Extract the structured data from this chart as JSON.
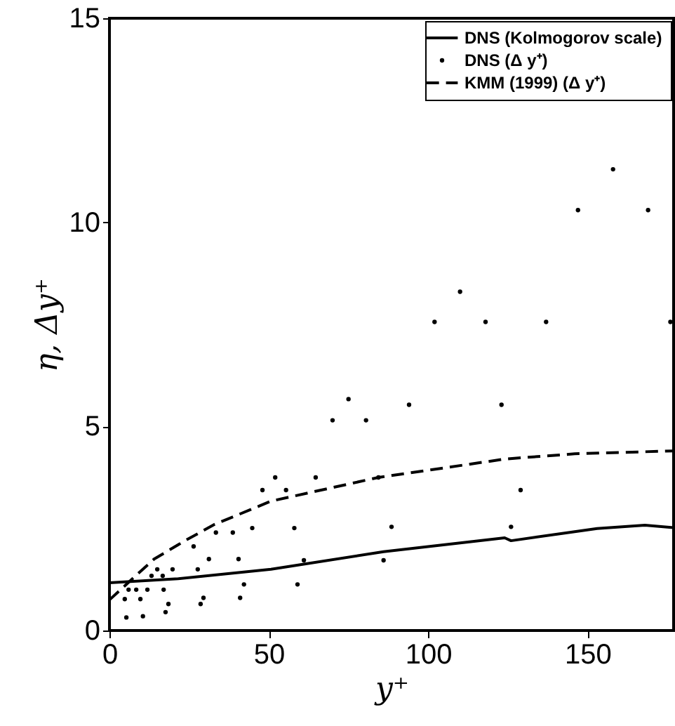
{
  "chart_data": {
    "type": "line",
    "xlabel": "y⁺",
    "ylabel": "η, Δy⁺",
    "xlim": [
      0,
      177
    ],
    "ylim": [
      0,
      15
    ],
    "xticks": [
      0,
      50,
      100,
      150
    ],
    "yticks": [
      0,
      5,
      10,
      15
    ],
    "grid": false,
    "legend": "top right",
    "series": [
      {
        "name": "DNS (Kolmogorov scale)",
        "line_style": "solid",
        "color": "#000000",
        "x": [
          0,
          21.5,
          50.7,
          86,
          124,
          126,
          153,
          168,
          177
        ],
        "values": [
          1.17,
          1.27,
          1.5,
          1.93,
          2.27,
          2.2,
          2.5,
          2.58,
          2.52
        ]
      },
      {
        "name": "DNS (Δ y⁺)",
        "type": "scatter",
        "marker": "circle",
        "color": "#000000",
        "x": [
          158,
          147,
          169,
          110,
          102,
          118,
          137,
          176,
          75,
          94,
          123,
          70,
          80.5,
          48,
          52,
          55.4,
          64.7,
          84.4,
          129,
          44.8,
          58,
          88.5,
          126,
          33.4,
          38.7,
          26.4,
          31.2,
          40.5,
          61,
          86,
          19.8,
          27.7,
          15,
          13.2,
          16.7,
          42.2,
          59,
          11.9,
          17,
          8.4,
          9.7,
          18.5,
          29.5,
          41,
          28.6,
          10.5,
          5.3,
          17.6,
          4.8,
          6
        ],
        "values": [
          11.3,
          10.3,
          10.3,
          8.3,
          7.56,
          7.56,
          7.56,
          7.56,
          5.67,
          5.53,
          5.53,
          5.15,
          5.15,
          3.44,
          3.75,
          3.44,
          3.75,
          3.75,
          3.44,
          2.51,
          2.51,
          2.54,
          2.54,
          2.4,
          2.4,
          2.06,
          1.75,
          1.75,
          1.72,
          1.72,
          1.5,
          1.5,
          1.5,
          1.34,
          1.34,
          1.13,
          1.13,
          1.0,
          1.0,
          1.0,
          0.77,
          0.65,
          0.8,
          0.8,
          0.65,
          0.35,
          0.32,
          0.45,
          0.77,
          1.0
        ]
      },
      {
        "name": "KMM (1999) (Δ y⁺)",
        "line_style": "dashed",
        "color": "#000000",
        "x": [
          0,
          8.2,
          14,
          23.7,
          33,
          50.7,
          84.4,
          124,
          146,
          177
        ],
        "values": [
          0.75,
          1.34,
          1.75,
          2.2,
          2.6,
          3.17,
          3.75,
          4.2,
          4.33,
          4.4
        ]
      }
    ]
  }
}
